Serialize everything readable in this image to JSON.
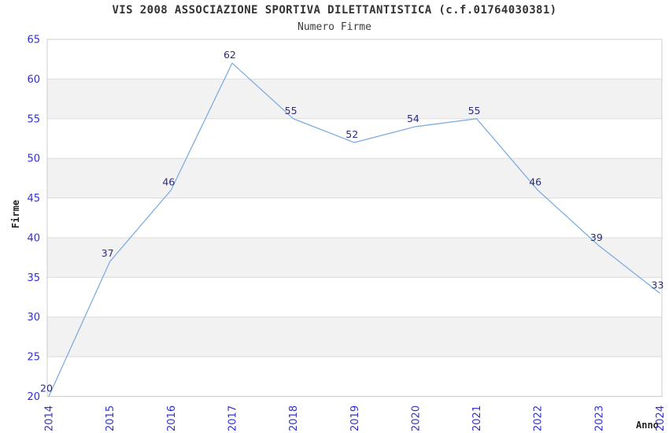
{
  "title": "VIS 2008 ASSOCIAZIONE SPORTIVA DILETTANTISTICA (c.f.01764030381)",
  "subtitle": "Numero Firme",
  "y_axis": {
    "label": "Firme",
    "min": 20,
    "max": 65,
    "tick_step": 5
  },
  "x_axis": {
    "label": "Anno"
  },
  "chart_data": {
    "type": "line",
    "title": "VIS 2008 ASSOCIAZIONE SPORTIVA DILETTANTISTICA (c.f.01764030381)",
    "subtitle": "Numero Firme",
    "xlabel": "Anno",
    "ylabel": "Firme",
    "x": [
      2014,
      2015,
      2016,
      2017,
      2018,
      2019,
      2020,
      2021,
      2022,
      2023,
      2024
    ],
    "values": [
      20,
      37,
      46,
      62,
      55,
      52,
      54,
      55,
      46,
      39,
      33
    ],
    "ylim": [
      20,
      65
    ],
    "ytick_step": 5,
    "grid": "horizontal",
    "banded_background": true,
    "legend_position": "none",
    "data_labels": true
  },
  "colors": {
    "line": "#74a9e0",
    "tick_label": "#3030cf",
    "data_label": "#2b2b7d",
    "band": "#f2f2f2",
    "grid": "#dcdcdc",
    "border": "#cccccc",
    "title": "#333333",
    "subtitle": "#3c3c3c",
    "axis_title": "#222222",
    "background": "#ffffff"
  }
}
